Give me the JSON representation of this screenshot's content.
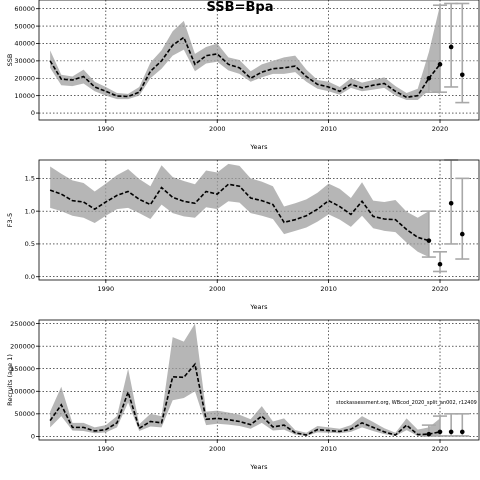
{
  "figure_title": "SSB=Bpa",
  "source_note": "stockassessment.org, WBcod_2020_split_an002, r12409",
  "chart_data": [
    {
      "type": "line",
      "ylabel": "SSB",
      "xlabel": "Years",
      "xlim": [
        1984,
        2023.5
      ],
      "ylim": [
        -4000,
        65000
      ],
      "xticks": [
        1990,
        2000,
        2010,
        2020
      ],
      "yticks": [
        0,
        10000,
        20000,
        30000,
        40000,
        50000,
        60000
      ],
      "grid": true,
      "series": [
        {
          "x": [
            1985,
            1986,
            1987,
            1988,
            1989,
            1990,
            1991,
            1992,
            1993,
            1994,
            1995,
            1996,
            1997,
            1998,
            1999,
            2000,
            2001,
            2002,
            2003,
            2004,
            2005,
            2006,
            2007,
            2008,
            2009,
            2010,
            2011,
            2012,
            2013,
            2014,
            2015,
            2016,
            2017,
            2018,
            2019,
            2020
          ],
          "values": [
            30000,
            19500,
            19000,
            21000,
            15000,
            12500,
            9800,
            9500,
            12000,
            24000,
            30000,
            39000,
            43500,
            28000,
            33000,
            34000,
            28000,
            26000,
            20000,
            23500,
            25500,
            26000,
            27000,
            21000,
            16500,
            15000,
            12500,
            16500,
            14500,
            16000,
            17000,
            12500,
            9000,
            10000,
            20000,
            28000
          ],
          "lower": [
            26000,
            16000,
            15500,
            17000,
            12500,
            10000,
            8000,
            8000,
            10000,
            20000,
            25500,
            33000,
            36500,
            24000,
            28500,
            29500,
            24500,
            22500,
            18000,
            20500,
            22500,
            22500,
            23500,
            18000,
            14000,
            12500,
            10500,
            14500,
            12500,
            13500,
            14500,
            10000,
            7500,
            7500,
            13000,
            11000
          ],
          "upper": [
            36000,
            22000,
            21000,
            25000,
            18000,
            15000,
            11500,
            11000,
            15000,
            29000,
            36000,
            47000,
            53000,
            34000,
            38000,
            40000,
            32000,
            30500,
            24000,
            28000,
            30000,
            32000,
            33000,
            25000,
            19000,
            18000,
            15000,
            20000,
            17500,
            19000,
            20500,
            15500,
            11500,
            14000,
            35000,
            62000
          ]
        }
      ],
      "forecast": [
        {
          "x": 2019,
          "y": 20000,
          "lower": 12000,
          "upper": 30000
        },
        {
          "x": 2020,
          "y": 28000,
          "lower": 12000,
          "upper": 62000
        },
        {
          "x": 2021,
          "y": 38000,
          "lower": 15000,
          "upper": 63000
        },
        {
          "x": 2022,
          "y": 22000,
          "lower": 6000,
          "upper": 63000
        }
      ]
    },
    {
      "type": "line",
      "ylabel": "F3-5",
      "xlabel": "Years",
      "xlim": [
        1984,
        2023.5
      ],
      "ylim": [
        -0.05,
        1.78
      ],
      "xticks": [
        1990,
        2000,
        2010,
        2020
      ],
      "yticks": [
        0.0,
        0.5,
        1.0,
        1.5
      ],
      "ytick_labels": [
        "0.0",
        "0.5",
        "1.0",
        "1.5"
      ],
      "grid": true,
      "series": [
        {
          "x": [
            1985,
            1986,
            1987,
            1988,
            1989,
            1990,
            1991,
            1992,
            1993,
            1994,
            1995,
            1996,
            1997,
            1998,
            1999,
            2000,
            2001,
            2002,
            2003,
            2004,
            2005,
            2006,
            2007,
            2008,
            2009,
            2010,
            2011,
            2012,
            2013,
            2014,
            2015,
            2016,
            2017,
            2018,
            2019
          ],
          "values": [
            1.32,
            1.26,
            1.16,
            1.14,
            1.03,
            1.14,
            1.24,
            1.3,
            1.18,
            1.1,
            1.36,
            1.21,
            1.15,
            1.12,
            1.3,
            1.26,
            1.41,
            1.38,
            1.2,
            1.16,
            1.1,
            0.83,
            0.87,
            0.93,
            1.03,
            1.16,
            1.07,
            0.95,
            1.15,
            0.92,
            0.88,
            0.87,
            0.72,
            0.6,
            0.55
          ],
          "lower": [
            1.05,
            1.0,
            0.93,
            0.9,
            0.82,
            0.93,
            1.03,
            1.05,
            0.97,
            0.88,
            1.1,
            0.97,
            0.92,
            0.9,
            1.06,
            1.03,
            1.15,
            1.13,
            0.97,
            0.93,
            0.88,
            0.65,
            0.7,
            0.75,
            0.84,
            0.95,
            0.87,
            0.76,
            0.93,
            0.74,
            0.7,
            0.68,
            0.52,
            0.38,
            0.3
          ],
          "upper": [
            1.68,
            1.57,
            1.47,
            1.43,
            1.3,
            1.42,
            1.55,
            1.64,
            1.49,
            1.38,
            1.7,
            1.52,
            1.46,
            1.41,
            1.62,
            1.59,
            1.72,
            1.69,
            1.5,
            1.45,
            1.38,
            1.07,
            1.12,
            1.18,
            1.28,
            1.42,
            1.34,
            1.2,
            1.44,
            1.16,
            1.14,
            1.17,
            0.99,
            0.9,
            1.0
          ]
        }
      ],
      "forecast": [
        {
          "x": 2019,
          "y": 0.55,
          "lower": 0.3,
          "upper": 1.0
        },
        {
          "x": 2020,
          "y": 0.19,
          "lower": 0.08,
          "upper": 0.38
        },
        {
          "x": 2021,
          "y": 1.12,
          "lower": 0.5,
          "upper": 1.78
        },
        {
          "x": 2022,
          "y": 0.65,
          "lower": 0.27,
          "upper": 1.5
        }
      ]
    },
    {
      "type": "line",
      "ylabel": "Recruits (age 1)",
      "xlabel": "Years",
      "xlim": [
        1984,
        2023.5
      ],
      "ylim": [
        -8000,
        258000
      ],
      "xticks": [
        1990,
        2000,
        2010,
        2020
      ],
      "yticks": [
        0,
        50000,
        100000,
        150000,
        200000,
        250000
      ],
      "grid": true,
      "series": [
        {
          "x": [
            1985,
            1986,
            1987,
            1988,
            1989,
            1990,
            1991,
            1992,
            1993,
            1994,
            1995,
            1996,
            1997,
            1998,
            1999,
            2000,
            2001,
            2002,
            2003,
            2004,
            2005,
            2006,
            2007,
            2008,
            2009,
            2010,
            2011,
            2012,
            2013,
            2014,
            2015,
            2016,
            2017,
            2018,
            2019,
            2020
          ],
          "values": [
            35000,
            70000,
            20000,
            20000,
            12000,
            15000,
            30000,
            98000,
            18000,
            33000,
            30000,
            132000,
            131000,
            160000,
            38000,
            40000,
            37000,
            33000,
            26000,
            45000,
            21000,
            25000,
            8000,
            3000,
            15000,
            13000,
            11000,
            16000,
            30000,
            20000,
            10000,
            3000,
            25000,
            4000,
            5000,
            10000
          ],
          "lower": [
            20000,
            45000,
            13000,
            12000,
            7000,
            9000,
            20000,
            75000,
            12000,
            22000,
            20000,
            80000,
            85000,
            100000,
            25000,
            28000,
            26000,
            23000,
            17000,
            30000,
            13000,
            15000,
            4000,
            1000,
            9000,
            8000,
            7000,
            10000,
            20000,
            12000,
            5000,
            1000,
            14000,
            1000,
            1000,
            2000
          ],
          "upper": [
            55000,
            110000,
            30000,
            30000,
            20000,
            25000,
            45000,
            150000,
            27000,
            50000,
            45000,
            220000,
            210000,
            250000,
            55000,
            57000,
            53000,
            48000,
            38000,
            67000,
            33000,
            40000,
            14000,
            8000,
            23000,
            20000,
            17000,
            25000,
            45000,
            32000,
            18000,
            8000,
            40000,
            15000,
            20000,
            40000
          ]
        }
      ],
      "forecast": [
        {
          "x": 2019,
          "y": 5000,
          "lower": 1000,
          "upper": 25000
        },
        {
          "x": 2020,
          "y": 10000,
          "lower": 1000,
          "upper": 45000
        },
        {
          "x": 2021,
          "y": 10000,
          "lower": 1000,
          "upper": 50000
        },
        {
          "x": 2022,
          "y": 10000,
          "lower": 1000,
          "upper": 50000
        }
      ]
    }
  ]
}
